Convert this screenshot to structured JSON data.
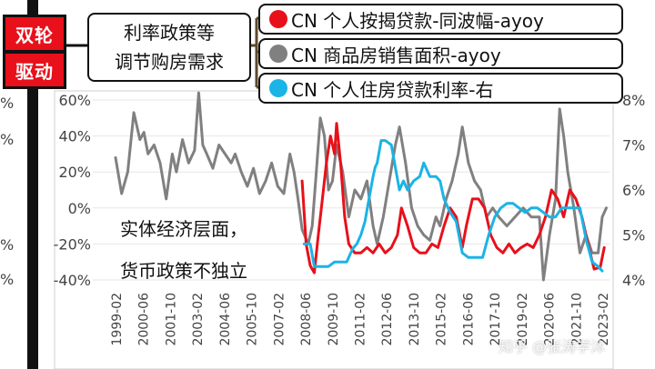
{
  "header": {
    "badge_lines": [
      "双轮",
      "驱动"
    ],
    "main_box_lines": [
      "利率政策等",
      "调节购房需求"
    ]
  },
  "left_cut_labels": [
    "%",
    "%",
    "%",
    "%"
  ],
  "annotation_lines": [
    "实体经济层面，",
    "货币政策不独立"
  ],
  "watermark": "知乎 @张涛学沐",
  "colors": {
    "red": "#e8101a",
    "gray": "#808080",
    "blue": "#1ab4e6",
    "badge": "#e8101a"
  },
  "chart_data": {
    "type": "line",
    "title": "",
    "xlabel": "",
    "ylabel": "",
    "x_ticks": [
      "1999-02",
      "2000-06",
      "2001-10",
      "2003-02",
      "2004-06",
      "2005-10",
      "2007-02",
      "2008-06",
      "2009-10",
      "2011-02",
      "2012-06",
      "2013-10",
      "2015-02",
      "2016-06",
      "2017-10",
      "2019-02",
      "2020-06",
      "2021-10",
      "2023-02"
    ],
    "y_left": {
      "ticks": [
        "60%",
        "40%",
        "20%",
        "0%",
        "-20%",
        "-40%"
      ],
      "range": [
        -40,
        60
      ]
    },
    "y_right": {
      "ticks": [
        "8%",
        "7%",
        "6%",
        "5%",
        "4%"
      ],
      "range": [
        4,
        8
      ]
    },
    "legend": [
      {
        "name": "CN 个人按揭贷款-同波幅-ayoy",
        "color": "#e8101a",
        "axis": "left"
      },
      {
        "name": "CN 商品房销售面积-ayoy",
        "color": "#808080",
        "axis": "left"
      },
      {
        "name": "CN 个人住房贷款利率-右",
        "color": "#1ab4e6",
        "axis": "right"
      }
    ],
    "series": [
      {
        "name": "CN 商品房销售面积-ayoy",
        "axis": "left",
        "x": [
          1999.1,
          1999.4,
          1999.7,
          2000.0,
          2000.3,
          2000.5,
          2000.7,
          2001.0,
          2001.3,
          2001.6,
          2001.9,
          2002.1,
          2002.4,
          2002.7,
          2003.0,
          2003.2,
          2003.4,
          2003.6,
          2003.9,
          2004.2,
          2004.5,
          2004.8,
          2005.0,
          2005.3,
          2005.6,
          2005.9,
          2006.2,
          2006.5,
          2006.8,
          2007.1,
          2007.4,
          2007.7,
          2007.9,
          2008.1,
          2008.3,
          2008.6,
          2008.8,
          2009.0,
          2009.2,
          2009.4,
          2009.6,
          2009.8,
          2010.0,
          2010.3,
          2010.6,
          2010.9,
          2011.2,
          2011.5,
          2011.8,
          2012.0,
          2012.3,
          2012.6,
          2012.9,
          2013.1,
          2013.4,
          2013.7,
          2014.0,
          2014.3,
          2014.6,
          2014.9,
          2015.1,
          2015.4,
          2015.7,
          2016.0,
          2016.2,
          2016.5,
          2016.8,
          2017.1,
          2017.4,
          2017.7,
          2018.0,
          2018.4,
          2018.8,
          2019.2,
          2019.6,
          2020.0,
          2020.2,
          2020.5,
          2020.8,
          2021.0,
          2021.2,
          2021.4,
          2021.7,
          2022.0,
          2022.3,
          2022.6,
          2022.9,
          2023.1,
          2023.3
        ],
        "values": [
          28,
          8,
          20,
          53,
          38,
          42,
          30,
          35,
          25,
          5,
          30,
          20,
          38,
          25,
          32,
          64,
          35,
          30,
          22,
          35,
          30,
          25,
          30,
          20,
          12,
          22,
          8,
          15,
          25,
          12,
          8,
          30,
          20,
          5,
          -12,
          -20,
          -10,
          20,
          50,
          40,
          10,
          15,
          35,
          20,
          -5,
          10,
          5,
          15,
          -10,
          -20,
          -5,
          15,
          35,
          45,
          25,
          0,
          -10,
          -15,
          -18,
          -5,
          -10,
          5,
          15,
          30,
          45,
          25,
          15,
          10,
          -5,
          0,
          -5,
          -10,
          -5,
          0,
          -5,
          -5,
          -40,
          -15,
          5,
          55,
          40,
          20,
          0,
          -25,
          -15,
          -25,
          -25,
          -5,
          0
        ]
      },
      {
        "name": "CN 个人按揭贷款-同波幅-ayoy",
        "axis": "left",
        "x": [
          2008.3,
          2008.5,
          2008.7,
          2008.9,
          2009.1,
          2009.3,
          2009.5,
          2009.7,
          2009.9,
          2010.0,
          2010.2,
          2010.4,
          2010.6,
          2010.9,
          2011.2,
          2011.5,
          2011.8,
          2012.1,
          2012.4,
          2012.7,
          2013.0,
          2013.2,
          2013.5,
          2013.8,
          2014.1,
          2014.4,
          2014.7,
          2015.0,
          2015.3,
          2015.6,
          2015.9,
          2016.2,
          2016.4,
          2016.7,
          2017.0,
          2017.3,
          2017.6,
          2017.9,
          2018.2,
          2018.5,
          2018.8,
          2019.1,
          2019.4,
          2019.7,
          2020.0,
          2020.3,
          2020.6,
          2020.9,
          2021.2,
          2021.5,
          2021.8,
          2022.1,
          2022.4,
          2022.7,
          2023.0,
          2023.2
        ],
        "values": [
          15,
          -20,
          -32,
          -36,
          -15,
          5,
          25,
          40,
          30,
          47,
          25,
          -5,
          -20,
          -25,
          -25,
          -22,
          -25,
          -20,
          -25,
          -22,
          -15,
          0,
          -10,
          -22,
          -25,
          -25,
          -20,
          -22,
          -10,
          0,
          -5,
          -22,
          -10,
          5,
          5,
          0,
          -15,
          -22,
          -25,
          -20,
          -25,
          -22,
          -20,
          -22,
          -15,
          -5,
          10,
          5,
          -5,
          10,
          5,
          -5,
          -20,
          -34,
          -33,
          -22
        ]
      },
      {
        "name": "CN 个人住房贷款利率-右",
        "axis": "right",
        "x": [
          2008.4,
          2008.7,
          2008.9,
          2009.1,
          2009.3,
          2009.6,
          2009.9,
          2010.2,
          2010.5,
          2010.8,
          2011.0,
          2011.2,
          2011.4,
          2011.6,
          2011.8,
          2011.9,
          2012.0,
          2012.2,
          2012.4,
          2012.7,
          2012.9,
          2013.1,
          2013.3,
          2013.5,
          2013.8,
          2014.1,
          2014.3,
          2014.6,
          2014.9,
          2015.1,
          2015.3,
          2015.6,
          2015.9,
          2016.2,
          2016.5,
          2016.8,
          2017.0,
          2017.2,
          2017.5,
          2017.8,
          2018.1,
          2018.4,
          2018.7,
          2019.0,
          2019.3,
          2019.6,
          2019.9,
          2020.2,
          2020.5,
          2020.8,
          2021.1,
          2021.4,
          2021.7,
          2022.0,
          2022.3,
          2022.6,
          2022.9,
          2023.1
        ],
        "values": [
          4.8,
          4.8,
          4.3,
          4.3,
          4.3,
          4.3,
          4.4,
          4.4,
          4.4,
          4.7,
          4.8,
          5.0,
          5.3,
          5.8,
          6.3,
          6.5,
          6.6,
          7.1,
          7.1,
          7.0,
          6.5,
          6.0,
          6.2,
          6.0,
          6.2,
          6.3,
          6.6,
          6.3,
          6.3,
          6.2,
          5.8,
          5.5,
          5.3,
          4.6,
          4.5,
          4.5,
          4.5,
          4.5,
          5.0,
          5.4,
          5.6,
          5.7,
          5.7,
          5.6,
          5.5,
          5.6,
          5.6,
          5.5,
          5.4,
          5.4,
          5.6,
          5.6,
          5.6,
          5.6,
          4.9,
          4.4,
          4.3,
          4.2
        ]
      }
    ]
  }
}
